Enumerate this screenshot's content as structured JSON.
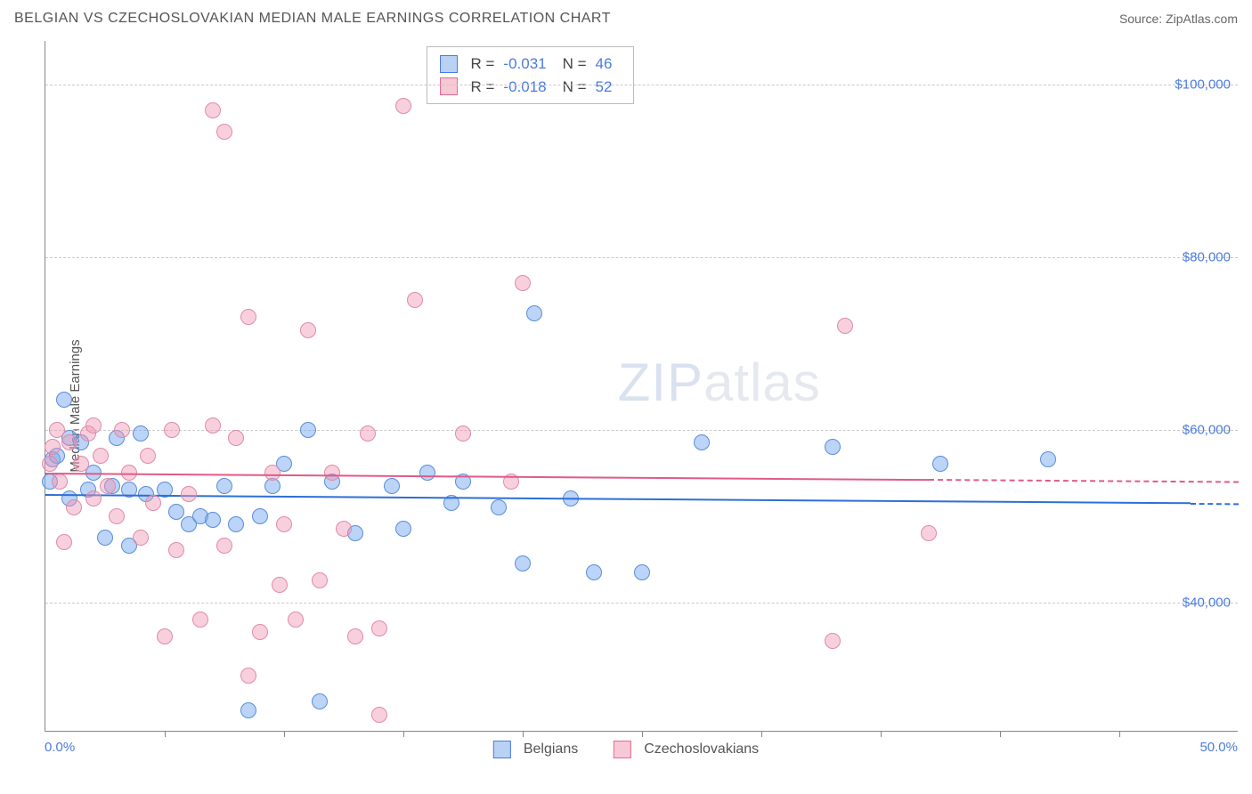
{
  "title": "BELGIAN VS CZECHOSLOVAKIAN MEDIAN MALE EARNINGS CORRELATION CHART",
  "source_label": "Source: ZipAtlas.com",
  "watermark": {
    "bold": "ZIP",
    "thin": "atlas"
  },
  "chart": {
    "type": "scatter",
    "ylabel": "Median Male Earnings",
    "background_color": "#ffffff",
    "grid_color": "#c9c9c9",
    "axis_color": "#888888",
    "x": {
      "min": 0.0,
      "max": 50.0,
      "label_min": "0.0%",
      "label_max": "50.0%",
      "ticks_every": 5.0,
      "label_color": "#4b7bdf"
    },
    "y": {
      "min": 25000,
      "max": 105000,
      "ticks": [
        40000,
        60000,
        80000,
        100000
      ],
      "tick_labels": [
        "$40,000",
        "$60,000",
        "$80,000",
        "$100,000"
      ],
      "label_color": "#4b7bdf"
    },
    "series": [
      {
        "name_key": "Belgians",
        "swatch_fill": "#b8d1f5",
        "swatch_border": "#4b7bdf",
        "marker_fill": "rgba(120,170,240,0.5)",
        "marker_border": "#5a8ed8",
        "marker_radius": 9,
        "R_label": "R =",
        "R": "-0.031",
        "N_label": "N =",
        "N": "46",
        "trend": {
          "color": "#2d6fd6",
          "y_at_xmin": 52500,
          "y_at_xmax": 51500,
          "solid_until_x": 48.0
        },
        "points": [
          [
            0.2,
            54000
          ],
          [
            0.3,
            56500
          ],
          [
            0.5,
            57000
          ],
          [
            0.8,
            63500
          ],
          [
            1.0,
            52000
          ],
          [
            1.0,
            59000
          ],
          [
            1.5,
            58500
          ],
          [
            1.8,
            53000
          ],
          [
            2.0,
            55000
          ],
          [
            2.5,
            47500
          ],
          [
            2.8,
            53500
          ],
          [
            3.0,
            59000
          ],
          [
            3.5,
            53000
          ],
          [
            3.5,
            46500
          ],
          [
            4.0,
            59500
          ],
          [
            4.2,
            52500
          ],
          [
            5.0,
            53000
          ],
          [
            5.5,
            50500
          ],
          [
            6.0,
            49000
          ],
          [
            6.5,
            50000
          ],
          [
            7.0,
            49500
          ],
          [
            7.5,
            53500
          ],
          [
            8.0,
            49000
          ],
          [
            8.5,
            27500
          ],
          [
            9.0,
            50000
          ],
          [
            9.5,
            53500
          ],
          [
            10.0,
            56000
          ],
          [
            11.0,
            60000
          ],
          [
            11.5,
            28500
          ],
          [
            12.0,
            54000
          ],
          [
            13.0,
            48000
          ],
          [
            14.5,
            53500
          ],
          [
            15.0,
            48500
          ],
          [
            16.0,
            55000
          ],
          [
            17.0,
            51500
          ],
          [
            17.5,
            54000
          ],
          [
            19.0,
            51000
          ],
          [
            20.0,
            44500
          ],
          [
            20.5,
            73500
          ],
          [
            22.0,
            52000
          ],
          [
            23.0,
            43500
          ],
          [
            25.0,
            43500
          ],
          [
            27.5,
            58500
          ],
          [
            33.0,
            58000
          ],
          [
            37.5,
            56000
          ],
          [
            42.0,
            56500
          ]
        ]
      },
      {
        "name_key": "Czechoslovakians",
        "swatch_fill": "#f7c8d6",
        "swatch_border": "#e76a8f",
        "marker_fill": "rgba(240,150,180,0.45)",
        "marker_border": "#e08aa8",
        "marker_radius": 9,
        "R_label": "R =",
        "R": "-0.018",
        "N_label": "N =",
        "N": "52",
        "trend": {
          "color": "#e15a86",
          "y_at_xmin": 55000,
          "y_at_xmax": 54000,
          "solid_until_x": 37.0
        },
        "points": [
          [
            0.2,
            56000
          ],
          [
            0.3,
            58000
          ],
          [
            0.5,
            60000
          ],
          [
            0.6,
            54000
          ],
          [
            0.8,
            47000
          ],
          [
            1.0,
            58500
          ],
          [
            1.2,
            51000
          ],
          [
            1.5,
            56000
          ],
          [
            1.8,
            59500
          ],
          [
            2.0,
            52000
          ],
          [
            2.0,
            60500
          ],
          [
            2.3,
            57000
          ],
          [
            2.6,
            53500
          ],
          [
            3.0,
            50000
          ],
          [
            3.2,
            60000
          ],
          [
            3.5,
            55000
          ],
          [
            4.0,
            47500
          ],
          [
            4.3,
            57000
          ],
          [
            4.5,
            51500
          ],
          [
            5.0,
            36000
          ],
          [
            5.3,
            60000
          ],
          [
            5.5,
            46000
          ],
          [
            6.0,
            52500
          ],
          [
            6.5,
            38000
          ],
          [
            7.0,
            60500
          ],
          [
            7.0,
            97000
          ],
          [
            7.5,
            46500
          ],
          [
            7.5,
            94500
          ],
          [
            8.0,
            59000
          ],
          [
            8.5,
            31500
          ],
          [
            8.5,
            73000
          ],
          [
            9.0,
            36500
          ],
          [
            9.5,
            55000
          ],
          [
            9.8,
            42000
          ],
          [
            10.0,
            49000
          ],
          [
            10.5,
            38000
          ],
          [
            11.0,
            71500
          ],
          [
            11.5,
            42500
          ],
          [
            12.0,
            55000
          ],
          [
            12.5,
            48500
          ],
          [
            13.0,
            36000
          ],
          [
            13.5,
            59500
          ],
          [
            14.0,
            37000
          ],
          [
            14.0,
            27000
          ],
          [
            15.0,
            97500
          ],
          [
            15.5,
            75000
          ],
          [
            17.5,
            59500
          ],
          [
            19.5,
            54000
          ],
          [
            20.0,
            77000
          ],
          [
            33.0,
            35500
          ],
          [
            33.5,
            72000
          ],
          [
            37.0,
            48000
          ]
        ]
      }
    ]
  }
}
